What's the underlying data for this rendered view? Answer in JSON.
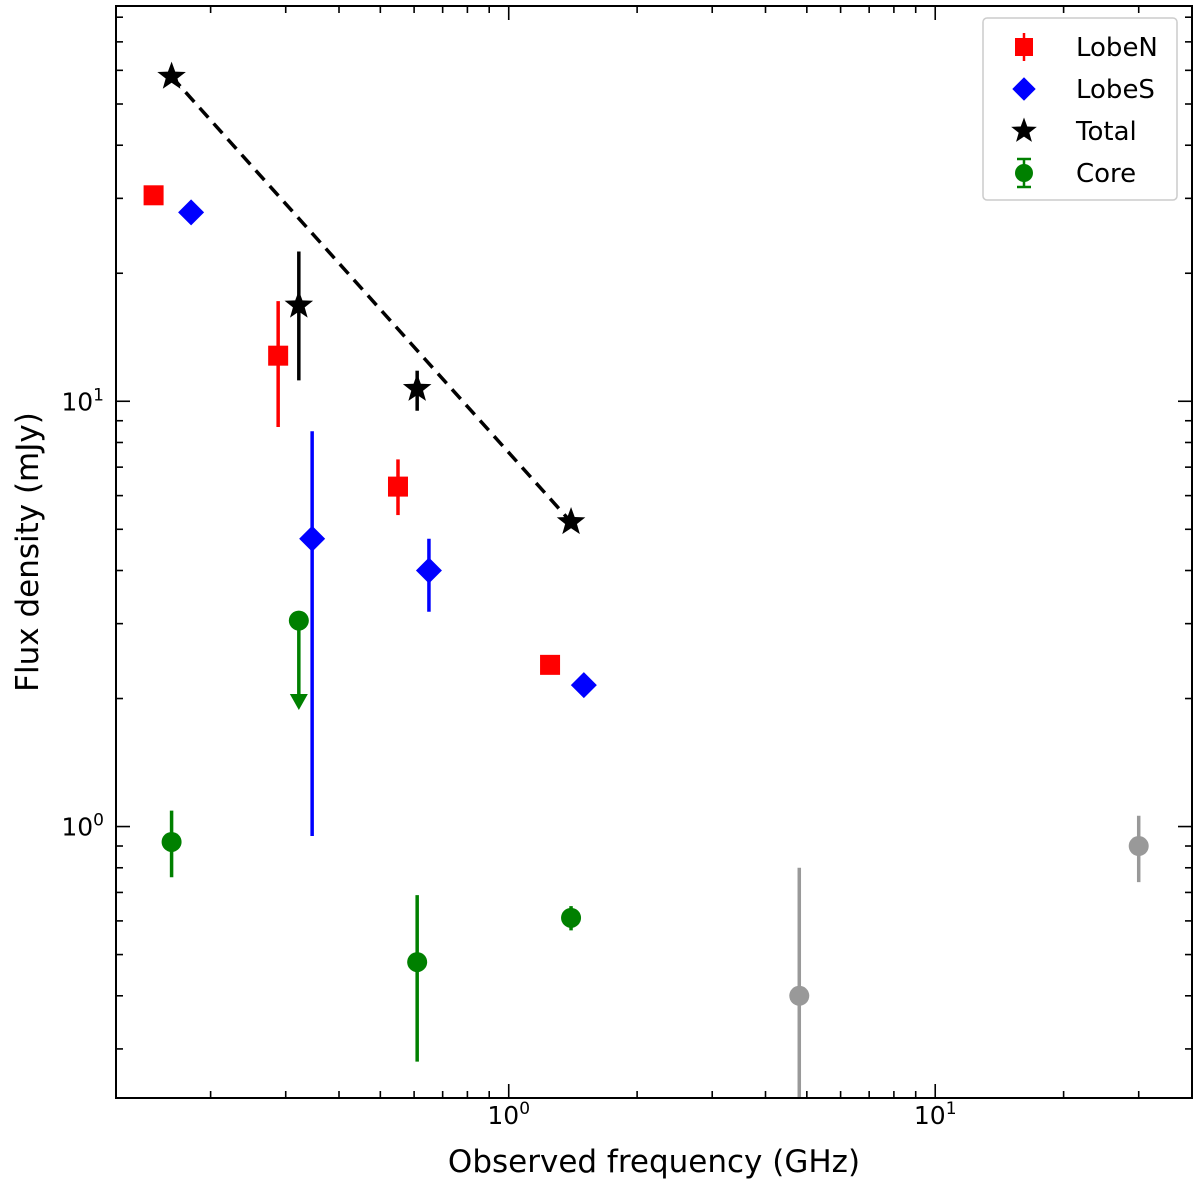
{
  "chart_data": {
    "type": "scatter",
    "title": "",
    "xlabel": "Observed frequency (GHz)",
    "ylabel": "Flux density (mJy)",
    "xscale": "log",
    "yscale": "log",
    "xlim": [
      0.12,
      40
    ],
    "ylim": [
      0.23,
      85
    ],
    "x_ticks": [
      {
        "value": 1,
        "label_base": "10",
        "label_exp": "0"
      },
      {
        "value": 10,
        "label_base": "10",
        "label_exp": "1"
      }
    ],
    "y_ticks": [
      {
        "value": 1,
        "label_base": "10",
        "label_exp": "0"
      },
      {
        "value": 10,
        "label_base": "10",
        "label_exp": "1"
      }
    ],
    "legend_position": "top-right",
    "series": [
      {
        "name": "LobeN",
        "marker": "square",
        "color": "#ff0000",
        "points": [
          {
            "x": 0.147,
            "y": 30.5
          },
          {
            "x": 0.288,
            "y": 12.8,
            "ylo": 8.7,
            "yhi": 17.2
          },
          {
            "x": 0.55,
            "y": 6.3,
            "ylo": 5.4,
            "yhi": 7.3
          },
          {
            "x": 1.25,
            "y": 2.4
          }
        ]
      },
      {
        "name": "LobeS",
        "marker": "diamond",
        "color": "#0000ff",
        "points": [
          {
            "x": 0.18,
            "y": 27.8
          },
          {
            "x": 0.346,
            "y": 4.75,
            "ylo": 0.95,
            "yhi": 8.5
          },
          {
            "x": 0.65,
            "y": 4.0,
            "ylo": 3.2,
            "yhi": 4.75
          },
          {
            "x": 1.5,
            "y": 2.15
          }
        ]
      },
      {
        "name": "Total",
        "marker": "star",
        "color": "#000000",
        "points": [
          {
            "x": 0.162,
            "y": 58.0
          },
          {
            "x": 0.322,
            "y": 16.8,
            "ylo": 11.2,
            "yhi": 22.5
          },
          {
            "x": 0.61,
            "y": 10.7,
            "ylo": 9.5,
            "yhi": 11.8
          },
          {
            "x": 1.4,
            "y": 5.2
          }
        ]
      },
      {
        "name": "Core",
        "marker": "circle",
        "color": "#008000",
        "points": [
          {
            "x": 0.162,
            "y": 0.92,
            "ylo": 0.76,
            "yhi": 1.09
          },
          {
            "x": 0.322,
            "y": 3.05,
            "upper_limit": true,
            "arrow_to": 1.9
          },
          {
            "x": 0.61,
            "y": 0.48,
            "ylo": 0.28,
            "yhi": 0.69
          },
          {
            "x": 1.4,
            "y": 0.61,
            "ylo": 0.57,
            "yhi": 0.65
          }
        ]
      },
      {
        "name": "",
        "marker": "circle",
        "color": "#999999",
        "points": [
          {
            "x": 4.8,
            "y": 0.4,
            "ylo": 0.23,
            "yhi": 0.8
          },
          {
            "x": 30.0,
            "y": 0.9,
            "ylo": 0.74,
            "yhi": 1.06
          }
        ]
      }
    ],
    "fit_line": {
      "style": "dashed",
      "color": "#000000",
      "x": [
        0.162,
        1.4
      ],
      "y": [
        58.0,
        5.2
      ]
    }
  }
}
